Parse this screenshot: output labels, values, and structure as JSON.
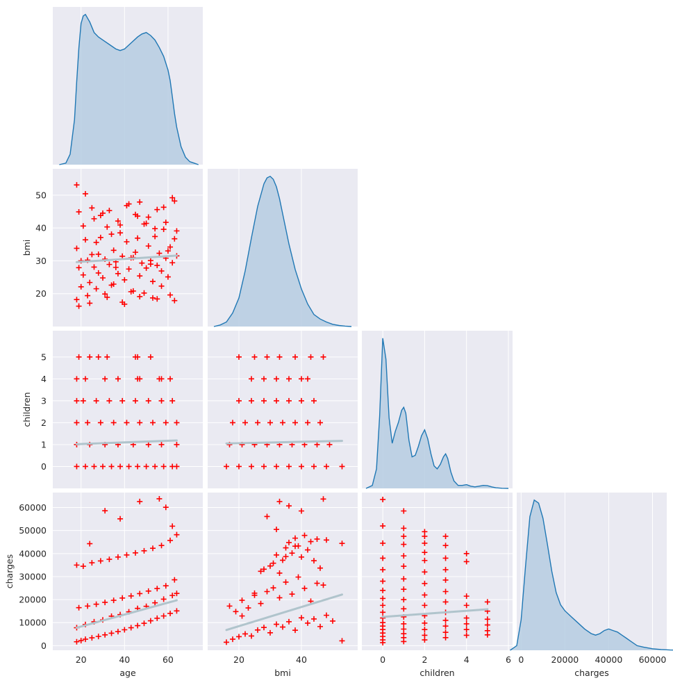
{
  "chart_data": {
    "type": "pairplot",
    "title": "",
    "variables": [
      "age",
      "bmi",
      "children",
      "charges"
    ],
    "corner": true,
    "diag_kind": "kde",
    "offdiag_kind": "scatter with linear regression",
    "marker": "+",
    "colors": {
      "scatter": "#ff0000",
      "kde_line": "#1f77b4",
      "kde_fill": "#b6cde2",
      "regression": "#b0c4cc"
    },
    "axes": {
      "age": {
        "label": "age",
        "range": [
          7,
          76
        ],
        "ticks": [
          20,
          40,
          60
        ]
      },
      "bmi": {
        "label": "bmi",
        "range": [
          10,
          58
        ],
        "ticks": [
          20,
          30,
          40,
          50
        ],
        "xticks": [
          20,
          40
        ]
      },
      "children": {
        "label": "children",
        "range": [
          -1.0,
          6.2
        ],
        "ticks": [
          0,
          1,
          2,
          3,
          4,
          5
        ],
        "xticks": [
          0,
          2,
          4,
          6
        ]
      },
      "charges": {
        "label": "charges",
        "range": [
          -2000,
          66500
        ],
        "ticks": [
          0,
          10000,
          20000,
          30000,
          40000,
          50000,
          60000
        ],
        "xticks": [
          0,
          20000,
          40000,
          60000
        ]
      }
    },
    "diagonal_kde": [
      {
        "variable": "age",
        "x": [
          10,
          13,
          15,
          17,
          18,
          19,
          20,
          21,
          22,
          24,
          26,
          28,
          30,
          33,
          36,
          38,
          40,
          43,
          46,
          48,
          50,
          52,
          54,
          56,
          58,
          60,
          61,
          62,
          63,
          64,
          66,
          68,
          70,
          72,
          74
        ],
        "y": [
          0.0,
          0.01,
          0.07,
          0.3,
          0.55,
          0.78,
          0.94,
          0.99,
          1.0,
          0.95,
          0.88,
          0.85,
          0.83,
          0.8,
          0.77,
          0.76,
          0.77,
          0.81,
          0.85,
          0.87,
          0.88,
          0.86,
          0.83,
          0.78,
          0.72,
          0.63,
          0.56,
          0.45,
          0.34,
          0.25,
          0.12,
          0.05,
          0.02,
          0.01,
          0.0
        ]
      },
      {
        "variable": "bmi",
        "x": [
          12,
          14,
          16,
          18,
          20,
          22,
          24,
          26,
          28,
          29,
          30,
          31,
          32,
          33,
          34,
          36,
          38,
          40,
          42,
          44,
          46,
          48,
          50,
          52,
          54,
          56
        ],
        "y": [
          0.0,
          0.01,
          0.03,
          0.09,
          0.19,
          0.37,
          0.59,
          0.8,
          0.95,
          0.99,
          1.0,
          0.98,
          0.93,
          0.85,
          0.75,
          0.55,
          0.38,
          0.25,
          0.15,
          0.08,
          0.05,
          0.03,
          0.015,
          0.007,
          0.003,
          0.0
        ]
      },
      {
        "variable": "children",
        "x": [
          -0.8,
          -0.5,
          -0.3,
          -0.15,
          0,
          0.15,
          0.3,
          0.45,
          0.6,
          0.75,
          0.9,
          1.0,
          1.1,
          1.25,
          1.4,
          1.55,
          1.7,
          1.85,
          2.0,
          2.15,
          2.3,
          2.45,
          2.6,
          2.75,
          2.9,
          3.0,
          3.1,
          3.25,
          3.4,
          3.6,
          3.8,
          4.0,
          4.2,
          4.4,
          4.6,
          4.8,
          5.0,
          5.2,
          5.4,
          5.7,
          6.0
        ],
        "y": [
          0.0,
          0.02,
          0.13,
          0.48,
          1.0,
          0.86,
          0.47,
          0.3,
          0.38,
          0.44,
          0.52,
          0.54,
          0.5,
          0.32,
          0.21,
          0.22,
          0.28,
          0.35,
          0.39,
          0.33,
          0.23,
          0.15,
          0.13,
          0.16,
          0.21,
          0.23,
          0.2,
          0.11,
          0.05,
          0.02,
          0.02,
          0.025,
          0.015,
          0.01,
          0.015,
          0.02,
          0.018,
          0.01,
          0.004,
          0.001,
          0.0
        ]
      },
      {
        "variable": "charges",
        "x": [
          -5000,
          -2000,
          0,
          2000,
          4000,
          6000,
          8000,
          10000,
          12000,
          14000,
          16000,
          18000,
          20000,
          23000,
          26000,
          29000,
          32000,
          34000,
          36000,
          38000,
          40000,
          42000,
          44000,
          46000,
          48000,
          50000,
          53000,
          56000,
          60000,
          64000,
          68000,
          72000
        ],
        "y": [
          0.0,
          0.03,
          0.2,
          0.55,
          0.88,
          0.99,
          0.97,
          0.87,
          0.7,
          0.52,
          0.38,
          0.3,
          0.26,
          0.22,
          0.18,
          0.14,
          0.11,
          0.1,
          0.11,
          0.13,
          0.14,
          0.13,
          0.12,
          0.1,
          0.08,
          0.06,
          0.03,
          0.02,
          0.01,
          0.005,
          0.002,
          0.0
        ]
      }
    ],
    "regression_lines": [
      {
        "x_var": "age",
        "y_var": "bmi",
        "x": [
          18,
          64
        ],
        "y": [
          29.6,
          31.6
        ]
      },
      {
        "x_var": "age",
        "y_var": "children",
        "x": [
          18,
          64
        ],
        "y": [
          1.02,
          1.19
        ]
      },
      {
        "x_var": "bmi",
        "y_var": "children",
        "x": [
          16,
          53
        ],
        "y": [
          1.05,
          1.17
        ]
      },
      {
        "x_var": "age",
        "y_var": "charges",
        "x": [
          18,
          64
        ],
        "y": [
          7800,
          19700
        ]
      },
      {
        "x_var": "bmi",
        "y_var": "charges",
        "x": [
          16,
          53
        ],
        "y": [
          6800,
          22200
        ]
      },
      {
        "x_var": "children",
        "y_var": "charges",
        "x": [
          0,
          5
        ],
        "y": [
          12500,
          15800
        ]
      }
    ],
    "scatter_points": {
      "age_vs_bmi": {
        "x": [
          18,
          19,
          20,
          21,
          22,
          23,
          24,
          25,
          26,
          27,
          28,
          29,
          30,
          31,
          32,
          33,
          34,
          35,
          36,
          37,
          38,
          39,
          40,
          41,
          42,
          43,
          44,
          45,
          46,
          47,
          48,
          49,
          50,
          51,
          52,
          53,
          54,
          55,
          56,
          57,
          58,
          59,
          60,
          61,
          62,
          63,
          64,
          18,
          19,
          21,
          23,
          25,
          27,
          29,
          31,
          33,
          35,
          37,
          39,
          41,
          43,
          45,
          47,
          49,
          51,
          53,
          55,
          57,
          59,
          61,
          63,
          64,
          18,
          22,
          26,
          30,
          34,
          38,
          42,
          46,
          50,
          54,
          58,
          62,
          19,
          24,
          32,
          40,
          47,
          55,
          63,
          20,
          28,
          36,
          44,
          52,
          60
        ],
        "y": [
          33.8,
          27.9,
          22.1,
          25.7,
          36.4,
          30.2,
          23.4,
          31.9,
          28.1,
          35.6,
          26.3,
          37.1,
          24.8,
          30.5,
          40.3,
          28.9,
          22.6,
          33.2,
          29.7,
          26.1,
          38.5,
          31.4,
          24.2,
          35.8,
          27.5,
          30.9,
          20.8,
          32.6,
          36.9,
          25.4,
          29.3,
          41.2,
          27.8,
          34.5,
          30.1,
          23.7,
          37.4,
          28.6,
          32.3,
          26.9,
          39.6,
          30.8,
          25.1,
          34.2,
          29.4,
          36.7,
          31.5,
          18.2,
          44.9,
          40.6,
          19.4,
          46.1,
          21.5,
          43.8,
          19.9,
          45.3,
          22.9,
          42.1,
          17.4,
          46.8,
          20.6,
          44.1,
          47.9,
          20.2,
          43.3,
          18.7,
          45.6,
          22.3,
          41.7,
          19.6,
          48.2,
          39.1,
          53.1,
          50.4,
          42.8,
          44.5,
          38.1,
          40.9,
          47.3,
          43.6,
          41.4,
          39.8,
          46.3,
          49.2,
          16.2,
          17.1,
          18.9,
          16.8,
          19.1,
          18.4,
          17.9,
          30.0,
          32.0,
          28.0,
          31.0,
          29.0,
          33.0
        ]
      },
      "age_vs_children": {
        "x": [
          18,
          22,
          26,
          30,
          34,
          38,
          42,
          46,
          50,
          54,
          58,
          62,
          64,
          18,
          24,
          31,
          37,
          44,
          51,
          57,
          64,
          18,
          23,
          29,
          35,
          41,
          47,
          53,
          59,
          64,
          18,
          21,
          27,
          33,
          39,
          45,
          51,
          57,
          62,
          18,
          22,
          31,
          37,
          46,
          47,
          56,
          57,
          61,
          19,
          24,
          28,
          32,
          45,
          46,
          52
        ],
        "y": [
          0,
          0,
          0,
          0,
          0,
          0,
          0,
          0,
          0,
          0,
          0,
          0,
          0,
          1,
          1,
          1,
          1,
          1,
          1,
          1,
          1,
          2,
          2,
          2,
          2,
          2,
          2,
          2,
          2,
          2,
          3,
          3,
          3,
          3,
          3,
          3,
          3,
          3,
          3,
          4,
          4,
          4,
          4,
          4,
          4,
          4,
          4,
          4,
          5,
          5,
          5,
          5,
          5,
          5,
          5
        ]
      },
      "bmi_vs_children": {
        "x": [
          16,
          20,
          24,
          28,
          32,
          36,
          40,
          44,
          48,
          53,
          17,
          21,
          25,
          29,
          33,
          37,
          41,
          45,
          49,
          18,
          22,
          26,
          30,
          34,
          38,
          42,
          46,
          20,
          24,
          28,
          32,
          36,
          40,
          44,
          24,
          28,
          32,
          36,
          40,
          42,
          20,
          25,
          29,
          33,
          38,
          43,
          47
        ],
        "y": [
          0,
          0,
          0,
          0,
          0,
          0,
          0,
          0,
          0,
          0,
          1,
          1,
          1,
          1,
          1,
          1,
          1,
          1,
          1,
          2,
          2,
          2,
          2,
          2,
          2,
          2,
          2,
          3,
          3,
          3,
          3,
          3,
          3,
          3,
          4,
          4,
          4,
          4,
          4,
          4,
          5,
          5,
          5,
          5,
          5,
          5,
          5
        ]
      },
      "age_vs_charges": {
        "x": [
          18,
          20,
          22,
          25,
          28,
          31,
          34,
          37,
          40,
          43,
          46,
          49,
          52,
          55,
          58,
          61,
          64,
          19,
          23,
          27,
          31,
          35,
          39,
          43,
          47,
          51,
          55,
          59,
          63,
          18,
          21,
          25,
          29,
          33,
          37,
          41,
          45,
          49,
          53,
          57,
          61,
          64,
          18,
          22,
          26,
          30,
          34,
          38,
          42,
          46,
          50,
          54,
          58,
          62,
          64,
          24,
          31,
          38,
          47,
          56,
          59,
          62
        ],
        "y": [
          1700,
          2200,
          2800,
          3400,
          4000,
          4700,
          5400,
          6100,
          6900,
          7800,
          8700,
          9700,
          10800,
          11900,
          12900,
          14000,
          15100,
          16500,
          17200,
          18000,
          18800,
          19700,
          20700,
          21600,
          22600,
          23700,
          24800,
          26000,
          28600,
          35000,
          34500,
          36000,
          36800,
          37500,
          38500,
          39400,
          40300,
          41200,
          42300,
          43500,
          45700,
          48200,
          7800,
          9200,
          10400,
          11200,
          12800,
          13500,
          14700,
          16200,
          17100,
          18600,
          20200,
          21800,
          22700,
          44300,
          58600,
          55100,
          62600,
          63800,
          60100,
          51900
        ]
      },
      "bmi_vs_charges": {
        "x": [
          16,
          18,
          20,
          22,
          24,
          26,
          28,
          30,
          32,
          34,
          36,
          38,
          40,
          42,
          44,
          46,
          48,
          50,
          53,
          17,
          19,
          21,
          23,
          25,
          27,
          29,
          31,
          33,
          35,
          37,
          39,
          41,
          43,
          45,
          47,
          30,
          32,
          34,
          35,
          36,
          37,
          38,
          39,
          40,
          41,
          42,
          43,
          44,
          45,
          46,
          48,
          21,
          25,
          28,
          31,
          33,
          35,
          38,
          33,
          36,
          40,
          47,
          53,
          29,
          32,
          27
        ],
        "y": [
          1500,
          2800,
          3900,
          5100,
          4200,
          6800,
          7900,
          5600,
          9300,
          8100,
          10400,
          6700,
          12100,
          9800,
          11600,
          8300,
          13200,
          10700,
          2100,
          17200,
          14800,
          19700,
          16400,
          21900,
          18300,
          23500,
          25100,
          20800,
          27600,
          22400,
          29800,
          24900,
          19300,
          27100,
          26300,
          34600,
          39400,
          37100,
          42500,
          44800,
          40200,
          46700,
          43300,
          38500,
          47900,
          41600,
          45200,
          36900,
          46300,
          33700,
          45900,
          12900,
          22800,
          33200,
          35800,
          31500,
          38700,
          43200,
          62600,
          60700,
          58500,
          63700,
          44400,
          56100,
          50500,
          32300
        ]
      },
      "children_vs_charges": {
        "x": [
          0,
          0,
          0,
          0,
          0,
          0,
          0,
          0,
          0,
          0,
          0,
          0,
          0,
          0,
          0,
          0,
          0,
          0,
          1,
          1,
          1,
          1,
          1,
          1,
          1,
          1,
          1,
          1,
          1,
          1,
          1,
          1,
          1,
          1,
          2,
          2,
          2,
          2,
          2,
          2,
          2,
          2,
          2,
          2,
          2,
          2,
          2,
          2,
          3,
          3,
          3,
          3,
          3,
          3,
          3,
          3,
          3,
          3,
          3,
          3,
          4,
          4,
          4,
          4,
          4,
          4,
          4,
          4,
          5,
          5,
          5,
          5,
          5,
          5
        ],
        "y": [
          1300,
          2500,
          4000,
          5500,
          7000,
          8500,
          10000,
          12000,
          14500,
          17500,
          20500,
          24000,
          28000,
          33000,
          38000,
          44500,
          52000,
          63500,
          1800,
          3500,
          5200,
          7200,
          9500,
          12500,
          16000,
          20000,
          24500,
          29000,
          34500,
          39000,
          44000,
          47500,
          51000,
          58500,
          2500,
          4500,
          7000,
          9800,
          13000,
          17500,
          22000,
          27000,
          32000,
          37000,
          40500,
          44500,
          47500,
          49500,
          3500,
          5800,
          8500,
          11000,
          14500,
          19000,
          23500,
          28500,
          33000,
          38000,
          43500,
          47500,
          4500,
          7000,
          9500,
          12000,
          17500,
          21500,
          36500,
          40000,
          4700,
          6500,
          9000,
          11500,
          15000,
          19000
        ]
      }
    }
  }
}
